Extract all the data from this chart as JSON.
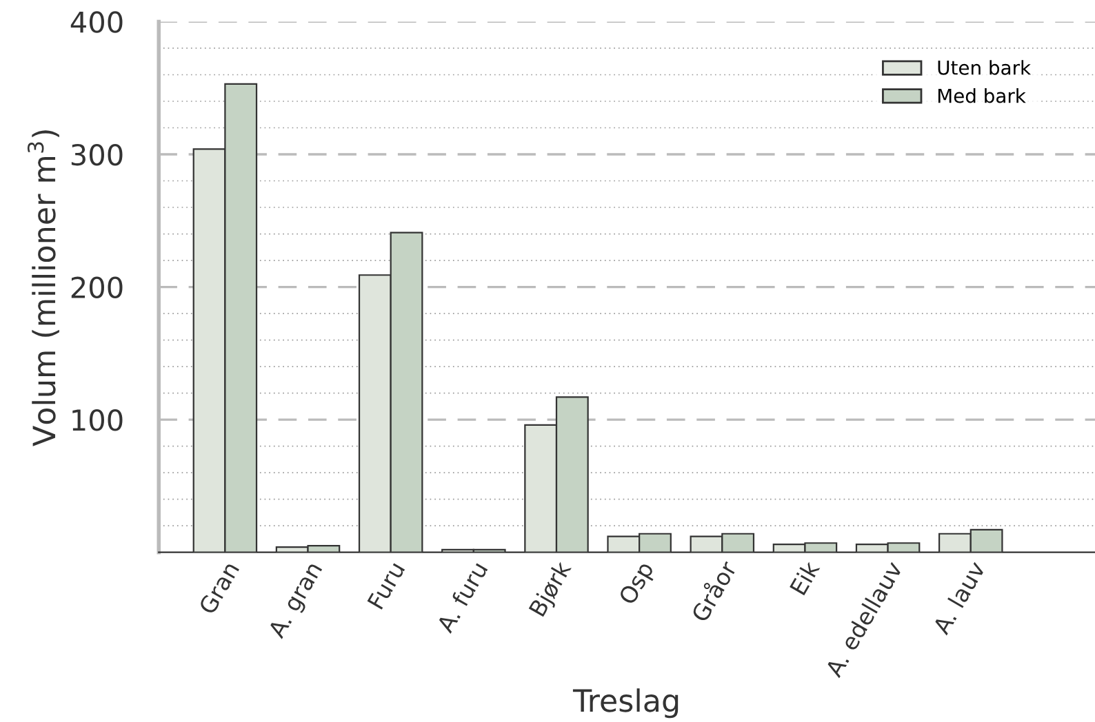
{
  "chart_data": {
    "type": "bar",
    "xlabel": "Treslag",
    "ylabel": "Volum (millioner m$^{3}$)",
    "categories": [
      "Gran",
      "A. gran",
      "Furu",
      "A. furu",
      "Bjørk",
      "Osp",
      "Gråor",
      "Eik",
      "A. edellauv",
      "A. lauv"
    ],
    "series": [
      {
        "name": "Uten bark",
        "color": "#dfe5dc",
        "values": [
          304,
          4,
          209,
          2,
          96,
          12,
          12,
          6,
          6,
          14
        ]
      },
      {
        "name": "Med bark",
        "color": "#c5d3c4",
        "values": [
          353,
          5,
          241,
          2,
          117,
          14,
          14,
          7,
          7,
          17
        ]
      }
    ],
    "ylim": [
      0,
      400
    ],
    "yticks": [
      {
        "value": 20,
        "label": null
      },
      {
        "value": 40,
        "label": null
      },
      {
        "value": 60,
        "label": null
      },
      {
        "value": 80,
        "label": null
      },
      100,
      {
        "value": 120,
        "label": null
      },
      {
        "value": 140,
        "label": null
      },
      {
        "value": 160,
        "label": null
      },
      {
        "value": 180,
        "label": null
      },
      200,
      {
        "value": 220,
        "label": null
      },
      {
        "value": 240,
        "label": null
      },
      {
        "value": 260,
        "label": null
      },
      {
        "value": 280,
        "label": null
      },
      300,
      {
        "value": 320,
        "label": null
      },
      {
        "value": 340,
        "label": null
      },
      {
        "value": 360,
        "label": null
      },
      {
        "value": 380,
        "label": null
      },
      400
    ],
    "grid": "y",
    "legend": "top right"
  }
}
